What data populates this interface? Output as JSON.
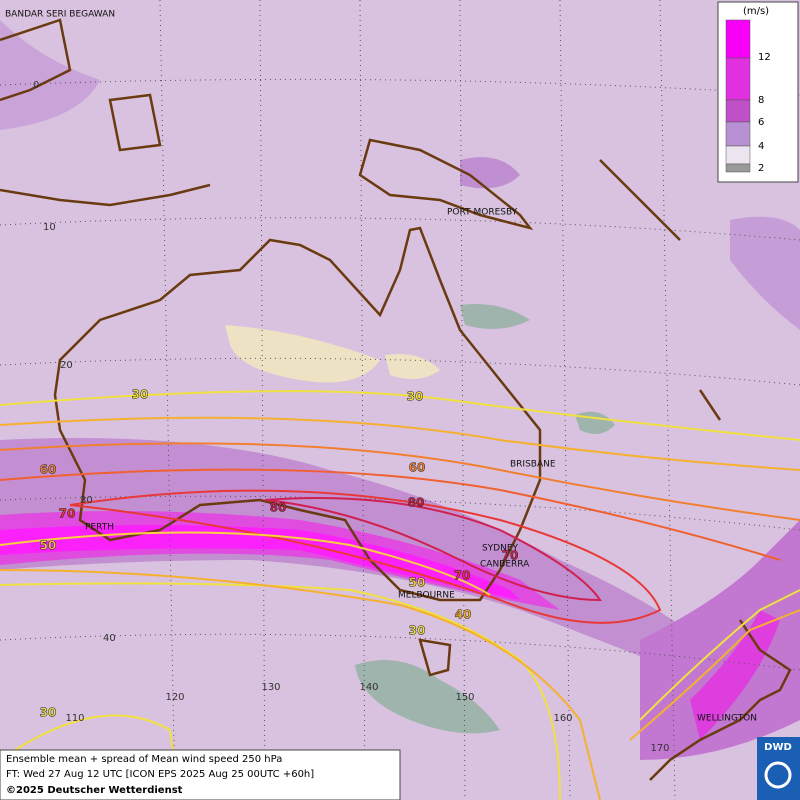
{
  "map": {
    "cities": [
      "BANDAR SERI BEGAWAN",
      "PORT MORESBY",
      "BRISBANE",
      "SYDNEY",
      "CANBERRA",
      "MELBOURNE",
      "PERTH",
      "WELLINGTON"
    ],
    "lat_labels": [
      0,
      10,
      20,
      30,
      40
    ],
    "lon_labels": [
      110,
      120,
      130,
      140,
      150,
      160,
      170
    ],
    "contour_labels": [
      30,
      30,
      60,
      60,
      70,
      80,
      80,
      50,
      70,
      70,
      50,
      40,
      30,
      30
    ],
    "legend": {
      "title": "(m/s)",
      "ticks": [
        12,
        8,
        6,
        4,
        2
      ]
    },
    "footer": [
      "Ensemble mean + spread of Mean wind speed 250 hPa",
      "FT: Wed 27 Aug 12 UTC [ICON EPS 2025 Aug 25 00UTC +60h]",
      "©2025 Deutscher Wetterdienst"
    ],
    "logo": "DWD"
  }
}
